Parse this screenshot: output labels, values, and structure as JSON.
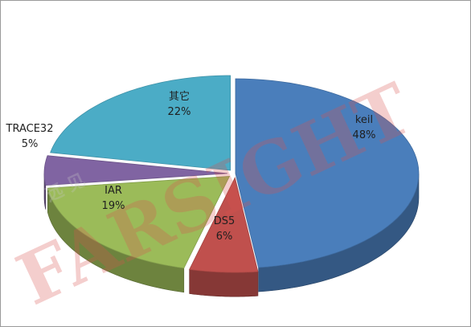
{
  "watermark": {
    "brand": "FARSIGHT",
    "tagline": "远 见"
  },
  "chart_data": {
    "type": "pie",
    "style": "3d-exploded",
    "slices": [
      {
        "label": "keil",
        "value": 48,
        "value_label": "48%",
        "color": "#4a7ebb"
      },
      {
        "label": "DS5",
        "value": 6,
        "value_label": "6%",
        "color": "#c0504d"
      },
      {
        "label": "IAR",
        "value": 19,
        "value_label": "19%",
        "color": "#9bbb59"
      },
      {
        "label": "TRACE32",
        "value": 5,
        "value_label": "5%",
        "color": "#8064a2"
      },
      {
        "label": "其它",
        "value": 22,
        "value_label": "22%",
        "color": "#4bacc6"
      }
    ]
  }
}
